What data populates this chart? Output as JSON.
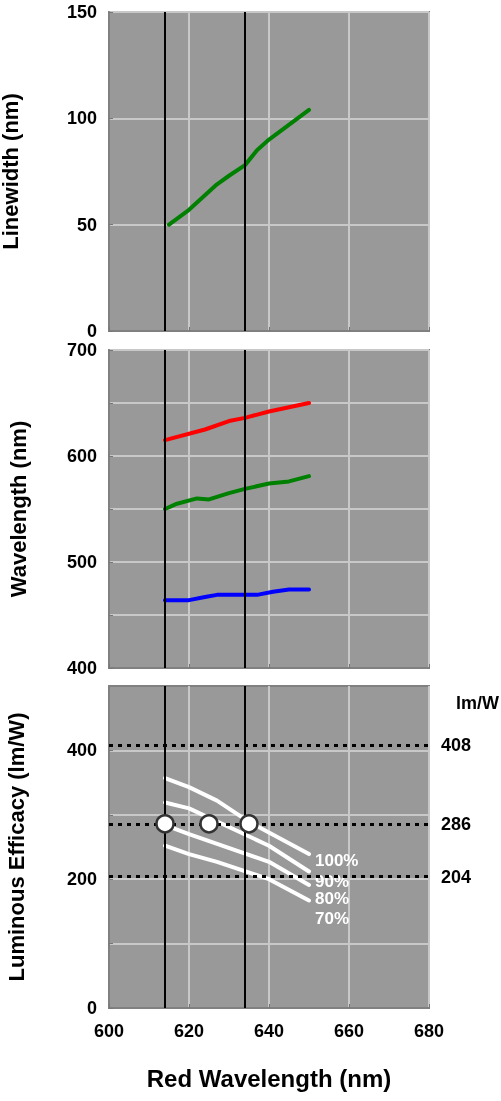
{
  "chart_data": [
    {
      "type": "line",
      "ylabel": "Linewidth (nm)",
      "xlim": [
        600,
        680
      ],
      "xticks": [
        600,
        620,
        640,
        660,
        680
      ],
      "ylim": [
        0,
        150
      ],
      "yticks": [
        0,
        50,
        100,
        150
      ],
      "grid": true,
      "tick_labels": "y",
      "marker": "none",
      "series": [
        {
          "color": "#008000",
          "x": [
            615,
            620,
            627,
            630,
            634,
            637,
            640,
            650
          ],
          "values": [
            50,
            57,
            69,
            73,
            78,
            85,
            90,
            104
          ]
        }
      ],
      "ref_lines": [
        {
          "axis": "x",
          "value": 614,
          "color": "#000000",
          "line_style": "solid"
        },
        {
          "axis": "x",
          "value": 634,
          "color": "#000000",
          "line_style": "solid"
        }
      ]
    },
    {
      "type": "line",
      "ylabel": "Wavelength (nm)",
      "xlim": [
        600,
        680
      ],
      "xticks": [
        600,
        620,
        640,
        660,
        680
      ],
      "ylim": [
        400,
        700
      ],
      "yticks": [
        400,
        {
          "value": 450,
          "label": null
        },
        500,
        {
          "value": 550,
          "label": null
        },
        600,
        {
          "value": 650,
          "label": null
        },
        700
      ],
      "grid": true,
      "tick_labels": "y",
      "marker": "none",
      "series": [
        {
          "color": "#ff0000",
          "x": [
            614,
            624,
            630,
            634,
            640,
            645,
            650
          ],
          "values": [
            615,
            625,
            633,
            636,
            642,
            646,
            650
          ]
        },
        {
          "color": "#008000",
          "x": [
            614,
            617,
            622,
            625,
            630,
            634,
            640,
            645,
            650
          ],
          "values": [
            550,
            555,
            560,
            559,
            565,
            569,
            574,
            576,
            581
          ]
        },
        {
          "color": "#0000ff",
          "x": [
            614,
            620,
            624,
            627,
            637,
            641,
            645,
            650
          ],
          "values": [
            464,
            464,
            467,
            469,
            469,
            472,
            474,
            474
          ]
        }
      ],
      "ref_lines": [
        {
          "axis": "x",
          "value": 614,
          "color": "#000000",
          "line_style": "solid"
        },
        {
          "axis": "x",
          "value": 634,
          "color": "#000000",
          "line_style": "solid"
        }
      ]
    },
    {
      "type": "line",
      "xlabel": "Red Wavelength (nm)",
      "ylabel": "Luminous Efficacy (lm/W)",
      "xlim": [
        600,
        680
      ],
      "xticks": [
        600,
        620,
        640,
        660,
        680
      ],
      "ylim": [
        0,
        500
      ],
      "yticks": [
        0,
        {
          "value": 100,
          "label": null
        },
        200,
        {
          "value": 300,
          "label": null
        },
        400
      ],
      "grid": true,
      "marker": "none",
      "annotations": [
        "lm/W"
      ],
      "series": [
        {
          "name": "100%",
          "color": "#ffffff",
          "x": [
            614,
            620,
            627,
            635,
            650
          ],
          "values": [
            357,
            343,
            322,
            289,
            239
          ]
        },
        {
          "name": "90%",
          "color": "#ffffff",
          "x": [
            614,
            620,
            640,
            650
          ],
          "values": [
            319,
            310,
            252,
            212
          ]
        },
        {
          "name": "80%",
          "color": "#ffffff",
          "x": [
            614,
            620,
            640,
            650
          ],
          "values": [
            284,
            270,
            227,
            191
          ]
        },
        {
          "name": "70%",
          "color": "#ffffff",
          "x": [
            614,
            620,
            627,
            640,
            650
          ],
          "values": [
            252,
            239,
            227,
            200,
            167
          ]
        },
        {
          "type": "scatter",
          "marker": "circle",
          "color": "#ffffff",
          "x": [
            614,
            625,
            635
          ],
          "values": [
            286,
            286,
            286
          ]
        }
      ],
      "ref_lines": [
        {
          "axis": "x",
          "value": 614,
          "color": "#000000",
          "line_style": "solid"
        },
        {
          "axis": "x",
          "value": 634,
          "color": "#000000",
          "line_style": "solid"
        },
        {
          "axis": "y",
          "value": 408,
          "label": "408",
          "color": "#000000",
          "line_style": "dotted"
        },
        {
          "axis": "y",
          "value": 286,
          "label": "286",
          "color": "#000000",
          "line_style": "dotted"
        },
        {
          "axis": "y",
          "value": 204,
          "label": "204",
          "color": "#000000",
          "line_style": "dotted"
        }
      ]
    }
  ]
}
